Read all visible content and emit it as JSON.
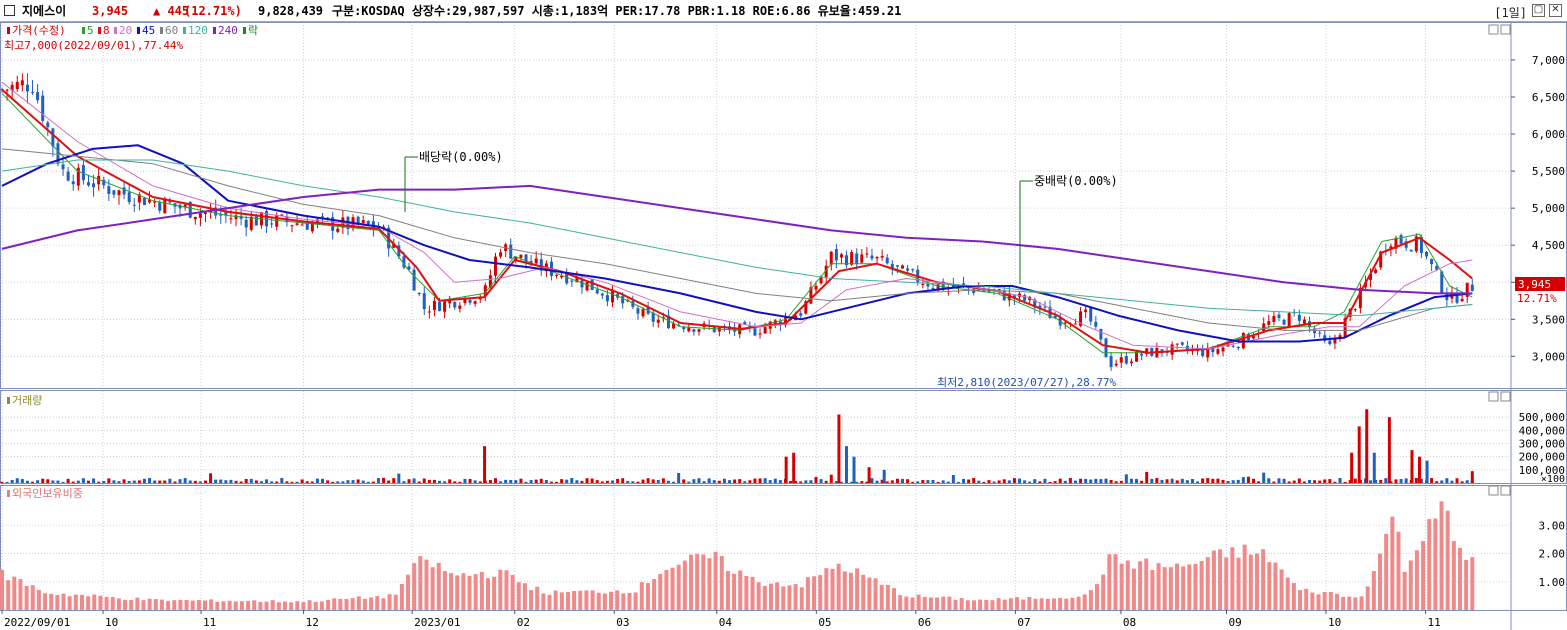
{
  "header": {
    "name": "지에스이",
    "price": "3,945",
    "change": "▲ 445",
    "change_pct": "(12.71%)",
    "volume": "9,828,439",
    "info": "구분:KOSDAQ 상장수:29,987,597 시총:1,183억 PER:17.78 PBR:1.18 ROE:6.86 유보율:459.21",
    "period": "[1일]",
    "colors": {
      "up": "#d40000",
      "down": "#1f5fc0"
    }
  },
  "legend": {
    "price": {
      "label": "가격(수정)",
      "items": [
        {
          "label": "5",
          "color": "#2ca02c"
        },
        {
          "label": "8",
          "color": "#e01010"
        },
        {
          "label": "20",
          "color": "#d070c8"
        },
        {
          "label": "45",
          "color": "#1010c0"
        },
        {
          "label": "60",
          "color": "#808080"
        },
        {
          "label": "120",
          "color": "#40b0a0"
        },
        {
          "label": "240",
          "color": "#8020c0"
        },
        {
          "label": "락",
          "color": "#109010"
        }
      ]
    },
    "volume": "거래량",
    "foreign": "외국인보유비중"
  },
  "annotations": {
    "high": "최고7,000(2022/09/01),77.44%",
    "low": "최저2,810(2023/07/27),28.77%",
    "dividend": "배당락(0.00%)",
    "bonus": "중배락(0.00%)",
    "last_price": "3,945",
    "last_pct": "12.71%"
  },
  "chart_data": {
    "type": "candlestick",
    "x_ticks": [
      "2022/09/01",
      "10",
      "11",
      "12",
      "2023/01",
      "02",
      "03",
      "04",
      "05",
      "06",
      "07",
      "08",
      "09",
      "10",
      "11"
    ],
    "price_axis": {
      "ticks": [
        "3,000",
        "3,500",
        "4,000",
        "4,500",
        "5,000",
        "5,500",
        "6,000",
        "6,500",
        "7,000"
      ],
      "range": [
        2600,
        7350
      ]
    },
    "volume_axis": {
      "ticks": [
        "100,000",
        "200,000",
        "300,000",
        "400,000",
        "500,000"
      ],
      "unit": "×100",
      "range": [
        0,
        600000
      ]
    },
    "foreign_axis": {
      "ticks": [
        "1.00",
        "2.00",
        "3.00"
      ],
      "range": [
        0,
        4
      ]
    },
    "close_path": [
      {
        "x": 0,
        "y": 6600
      },
      {
        "x": 0.02,
        "y": 6700
      },
      {
        "x": 0.04,
        "y": 5500
      },
      {
        "x": 0.06,
        "y": 5350
      },
      {
        "x": 0.08,
        "y": 5200
      },
      {
        "x": 0.1,
        "y": 5100
      },
      {
        "x": 0.13,
        "y": 4950
      },
      {
        "x": 0.16,
        "y": 4850
      },
      {
        "x": 0.2,
        "y": 4800
      },
      {
        "x": 0.25,
        "y": 4750
      },
      {
        "x": 0.27,
        "y": 4150
      },
      {
        "x": 0.28,
        "y": 3650
      },
      {
        "x": 0.3,
        "y": 3750
      },
      {
        "x": 0.32,
        "y": 3850
      },
      {
        "x": 0.33,
        "y": 4500
      },
      {
        "x": 0.35,
        "y": 4250
      },
      {
        "x": 0.38,
        "y": 4050
      },
      {
        "x": 0.4,
        "y": 3850
      },
      {
        "x": 0.43,
        "y": 3500
      },
      {
        "x": 0.46,
        "y": 3400
      },
      {
        "x": 0.48,
        "y": 3350
      },
      {
        "x": 0.5,
        "y": 3350
      },
      {
        "x": 0.53,
        "y": 3600
      },
      {
        "x": 0.55,
        "y": 4350
      },
      {
        "x": 0.58,
        "y": 4300
      },
      {
        "x": 0.6,
        "y": 4100
      },
      {
        "x": 0.62,
        "y": 3950
      },
      {
        "x": 0.65,
        "y": 3900
      },
      {
        "x": 0.68,
        "y": 3750
      },
      {
        "x": 0.7,
        "y": 3500
      },
      {
        "x": 0.72,
        "y": 3550
      },
      {
        "x": 0.735,
        "y": 2900
      },
      {
        "x": 0.76,
        "y": 3050
      },
      {
        "x": 0.78,
        "y": 3100
      },
      {
        "x": 0.8,
        "y": 3050
      },
      {
        "x": 0.82,
        "y": 3200
      },
      {
        "x": 0.84,
        "y": 3450
      },
      {
        "x": 0.86,
        "y": 3550
      },
      {
        "x": 0.88,
        "y": 3100
      },
      {
        "x": 0.9,
        "y": 3800
      },
      {
        "x": 0.92,
        "y": 4600
      },
      {
        "x": 0.94,
        "y": 4500
      },
      {
        "x": 0.96,
        "y": 3750
      },
      {
        "x": 0.975,
        "y": 3945
      }
    ],
    "ma_lines": [
      {
        "name": "5",
        "color": "#2ca02c",
        "width": 1,
        "points": [
          [
            0,
            6550
          ],
          [
            0.05,
            5500
          ],
          [
            0.1,
            5100
          ],
          [
            0.15,
            4900
          ],
          [
            0.2,
            4800
          ],
          [
            0.25,
            4700
          ],
          [
            0.27,
            4150
          ],
          [
            0.29,
            3750
          ],
          [
            0.32,
            3850
          ],
          [
            0.34,
            4350
          ],
          [
            0.37,
            4100
          ],
          [
            0.41,
            3800
          ],
          [
            0.45,
            3400
          ],
          [
            0.49,
            3350
          ],
          [
            0.52,
            3500
          ],
          [
            0.55,
            4250
          ],
          [
            0.58,
            4250
          ],
          [
            0.62,
            3950
          ],
          [
            0.66,
            3850
          ],
          [
            0.7,
            3500
          ],
          [
            0.73,
            3050
          ],
          [
            0.76,
            3050
          ],
          [
            0.8,
            3100
          ],
          [
            0.84,
            3400
          ],
          [
            0.87,
            3400
          ],
          [
            0.89,
            3600
          ],
          [
            0.915,
            4550
          ],
          [
            0.94,
            4650
          ],
          [
            0.96,
            3950
          ],
          [
            0.975,
            3800
          ]
        ]
      },
      {
        "name": "8",
        "color": "#e01010",
        "width": 2,
        "points": [
          [
            0,
            6600
          ],
          [
            0.05,
            5700
          ],
          [
            0.1,
            5150
          ],
          [
            0.15,
            4950
          ],
          [
            0.2,
            4820
          ],
          [
            0.25,
            4720
          ],
          [
            0.275,
            4200
          ],
          [
            0.29,
            3750
          ],
          [
            0.32,
            3800
          ],
          [
            0.34,
            4300
          ],
          [
            0.37,
            4150
          ],
          [
            0.41,
            3850
          ],
          [
            0.45,
            3450
          ],
          [
            0.49,
            3370
          ],
          [
            0.52,
            3450
          ],
          [
            0.555,
            4150
          ],
          [
            0.58,
            4250
          ],
          [
            0.62,
            4000
          ],
          [
            0.66,
            3880
          ],
          [
            0.7,
            3550
          ],
          [
            0.73,
            3150
          ],
          [
            0.76,
            3050
          ],
          [
            0.8,
            3100
          ],
          [
            0.84,
            3350
          ],
          [
            0.87,
            3450
          ],
          [
            0.89,
            3450
          ],
          [
            0.915,
            4400
          ],
          [
            0.94,
            4600
          ],
          [
            0.96,
            4300
          ],
          [
            0.975,
            4050
          ]
        ]
      },
      {
        "name": "20",
        "color": "#d070c8",
        "width": 1,
        "points": [
          [
            0,
            6700
          ],
          [
            0.05,
            5900
          ],
          [
            0.1,
            5300
          ],
          [
            0.15,
            5000
          ],
          [
            0.2,
            4850
          ],
          [
            0.25,
            4750
          ],
          [
            0.28,
            4400
          ],
          [
            0.3,
            4000
          ],
          [
            0.33,
            4050
          ],
          [
            0.36,
            4200
          ],
          [
            0.4,
            4000
          ],
          [
            0.45,
            3600
          ],
          [
            0.5,
            3400
          ],
          [
            0.53,
            3450
          ],
          [
            0.56,
            3900
          ],
          [
            0.6,
            4050
          ],
          [
            0.64,
            3950
          ],
          [
            0.68,
            3800
          ],
          [
            0.72,
            3400
          ],
          [
            0.75,
            3150
          ],
          [
            0.8,
            3100
          ],
          [
            0.85,
            3300
          ],
          [
            0.88,
            3400
          ],
          [
            0.9,
            3400
          ],
          [
            0.93,
            3950
          ],
          [
            0.96,
            4250
          ],
          [
            0.975,
            4300
          ]
        ]
      },
      {
        "name": "45",
        "color": "#1010c0",
        "width": 2,
        "points": [
          [
            0,
            5300
          ],
          [
            0.03,
            5600
          ],
          [
            0.06,
            5800
          ],
          [
            0.09,
            5850
          ],
          [
            0.12,
            5600
          ],
          [
            0.15,
            5100
          ],
          [
            0.2,
            4900
          ],
          [
            0.25,
            4750
          ],
          [
            0.28,
            4500
          ],
          [
            0.31,
            4300
          ],
          [
            0.35,
            4200
          ],
          [
            0.4,
            4050
          ],
          [
            0.45,
            3850
          ],
          [
            0.5,
            3600
          ],
          [
            0.53,
            3500
          ],
          [
            0.56,
            3650
          ],
          [
            0.6,
            3850
          ],
          [
            0.64,
            3950
          ],
          [
            0.67,
            3950
          ],
          [
            0.7,
            3800
          ],
          [
            0.74,
            3550
          ],
          [
            0.78,
            3350
          ],
          [
            0.82,
            3200
          ],
          [
            0.86,
            3200
          ],
          [
            0.89,
            3250
          ],
          [
            0.92,
            3550
          ],
          [
            0.95,
            3800
          ],
          [
            0.975,
            3850
          ]
        ]
      },
      {
        "name": "60",
        "color": "#808080",
        "width": 1,
        "points": [
          [
            0,
            5800
          ],
          [
            0.05,
            5700
          ],
          [
            0.1,
            5600
          ],
          [
            0.15,
            5300
          ],
          [
            0.2,
            5050
          ],
          [
            0.25,
            4900
          ],
          [
            0.3,
            4600
          ],
          [
            0.35,
            4400
          ],
          [
            0.4,
            4250
          ],
          [
            0.45,
            4050
          ],
          [
            0.5,
            3850
          ],
          [
            0.55,
            3750
          ],
          [
            0.6,
            3850
          ],
          [
            0.65,
            3900
          ],
          [
            0.7,
            3850
          ],
          [
            0.75,
            3650
          ],
          [
            0.8,
            3450
          ],
          [
            0.85,
            3350
          ],
          [
            0.9,
            3350
          ],
          [
            0.95,
            3650
          ],
          [
            0.975,
            3700
          ]
        ]
      },
      {
        "name": "120",
        "color": "#40b0a0",
        "width": 1,
        "points": [
          [
            0,
            5500
          ],
          [
            0.05,
            5650
          ],
          [
            0.1,
            5650
          ],
          [
            0.15,
            5500
          ],
          [
            0.2,
            5300
          ],
          [
            0.25,
            5150
          ],
          [
            0.3,
            4950
          ],
          [
            0.35,
            4800
          ],
          [
            0.4,
            4600
          ],
          [
            0.45,
            4400
          ],
          [
            0.5,
            4200
          ],
          [
            0.55,
            4050
          ],
          [
            0.6,
            4000
          ],
          [
            0.65,
            3950
          ],
          [
            0.7,
            3850
          ],
          [
            0.75,
            3750
          ],
          [
            0.8,
            3650
          ],
          [
            0.85,
            3600
          ],
          [
            0.9,
            3550
          ],
          [
            0.95,
            3650
          ],
          [
            0.975,
            3700
          ]
        ]
      },
      {
        "name": "240",
        "color": "#8020c0",
        "width": 2,
        "points": [
          [
            0,
            4450
          ],
          [
            0.05,
            4700
          ],
          [
            0.1,
            4850
          ],
          [
            0.15,
            5000
          ],
          [
            0.2,
            5150
          ],
          [
            0.25,
            5250
          ],
          [
            0.3,
            5250
          ],
          [
            0.35,
            5300
          ],
          [
            0.4,
            5150
          ],
          [
            0.45,
            5000
          ],
          [
            0.5,
            4850
          ],
          [
            0.55,
            4700
          ],
          [
            0.6,
            4600
          ],
          [
            0.65,
            4550
          ],
          [
            0.7,
            4450
          ],
          [
            0.75,
            4300
          ],
          [
            0.8,
            4150
          ],
          [
            0.85,
            4000
          ],
          [
            0.9,
            3900
          ],
          [
            0.95,
            3850
          ],
          [
            0.975,
            3850
          ]
        ]
      }
    ],
    "volume_spikes": [
      {
        "x": 0.32,
        "v": 280000,
        "dir": "up"
      },
      {
        "x": 0.52,
        "v": 200000,
        "dir": "up"
      },
      {
        "x": 0.525,
        "v": 230000,
        "dir": "up"
      },
      {
        "x": 0.555,
        "v": 520000,
        "dir": "up"
      },
      {
        "x": 0.56,
        "v": 280000,
        "dir": "down"
      },
      {
        "x": 0.565,
        "v": 200000,
        "dir": "down"
      },
      {
        "x": 0.575,
        "v": 120000,
        "dir": "up"
      },
      {
        "x": 0.585,
        "v": 100000,
        "dir": "down"
      },
      {
        "x": 0.895,
        "v": 230000,
        "dir": "up"
      },
      {
        "x": 0.9,
        "v": 430000,
        "dir": "up"
      },
      {
        "x": 0.905,
        "v": 560000,
        "dir": "up"
      },
      {
        "x": 0.91,
        "v": 230000,
        "dir": "down"
      },
      {
        "x": 0.92,
        "v": 500000,
        "dir": "up"
      },
      {
        "x": 0.935,
        "v": 250000,
        "dir": "up"
      },
      {
        "x": 0.94,
        "v": 200000,
        "dir": "up"
      },
      {
        "x": 0.945,
        "v": 170000,
        "dir": "down"
      },
      {
        "x": 0.975,
        "v": 90000,
        "dir": "up"
      }
    ],
    "foreign_profile": [
      {
        "x": 0,
        "v": 1.3
      },
      {
        "x": 0.03,
        "v": 0.6
      },
      {
        "x": 0.1,
        "v": 0.35
      },
      {
        "x": 0.2,
        "v": 0.3
      },
      {
        "x": 0.26,
        "v": 0.5
      },
      {
        "x": 0.27,
        "v": 1.3
      },
      {
        "x": 0.28,
        "v": 1.8
      },
      {
        "x": 0.3,
        "v": 1.2
      },
      {
        "x": 0.33,
        "v": 1.35
      },
      {
        "x": 0.36,
        "v": 0.6
      },
      {
        "x": 0.42,
        "v": 0.7
      },
      {
        "x": 0.44,
        "v": 1.5
      },
      {
        "x": 0.47,
        "v": 1.9
      },
      {
        "x": 0.5,
        "v": 1.0
      },
      {
        "x": 0.53,
        "v": 0.9
      },
      {
        "x": 0.555,
        "v": 1.6
      },
      {
        "x": 0.58,
        "v": 1.0
      },
      {
        "x": 0.6,
        "v": 0.5
      },
      {
        "x": 0.65,
        "v": 0.35
      },
      {
        "x": 0.72,
        "v": 0.5
      },
      {
        "x": 0.735,
        "v": 1.8
      },
      {
        "x": 0.76,
        "v": 1.6
      },
      {
        "x": 0.78,
        "v": 1.5
      },
      {
        "x": 0.8,
        "v": 1.8
      },
      {
        "x": 0.82,
        "v": 2.1
      },
      {
        "x": 0.84,
        "v": 1.9
      },
      {
        "x": 0.86,
        "v": 0.7
      },
      {
        "x": 0.88,
        "v": 0.6
      },
      {
        "x": 0.9,
        "v": 0.4
      },
      {
        "x": 0.91,
        "v": 1.4
      },
      {
        "x": 0.925,
        "v": 3.6
      },
      {
        "x": 0.93,
        "v": 1.2
      },
      {
        "x": 0.945,
        "v": 3.2
      },
      {
        "x": 0.955,
        "v": 3.8
      },
      {
        "x": 0.965,
        "v": 2.0
      },
      {
        "x": 0.975,
        "v": 1.8
      }
    ]
  }
}
